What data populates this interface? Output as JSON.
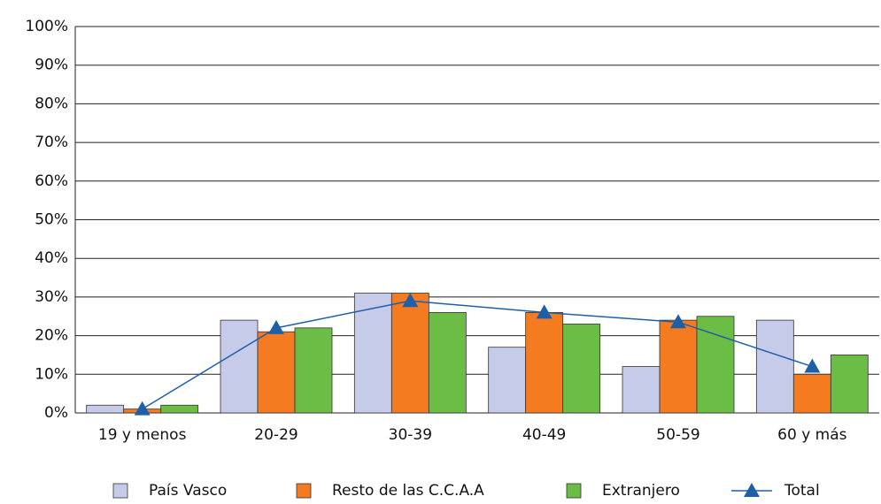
{
  "chart_data": {
    "type": "bar",
    "categories": [
      "19 y menos",
      "20-29",
      "30-39",
      "40-49",
      "50-59",
      "60 y más"
    ],
    "series": [
      {
        "name": "País Vasco",
        "color": "#c5cbe8",
        "values": [
          2,
          24,
          31,
          17,
          12,
          24
        ]
      },
      {
        "name": "Resto de las C.C.A.A",
        "color": "#f47b20",
        "values": [
          1,
          21,
          31,
          26,
          24,
          10
        ]
      },
      {
        "name": "Extranjero",
        "color": "#6cbd45",
        "values": [
          2,
          22,
          26,
          23,
          25,
          15
        ]
      },
      {
        "name": "Total",
        "color": "#1f5fa8",
        "type": "line",
        "values": [
          1,
          22,
          29,
          26,
          23.5,
          12
        ]
      }
    ],
    "ylim": [
      0,
      100
    ],
    "yticks": [
      {
        "value": 0,
        "label": "0%"
      },
      {
        "value": 10,
        "label": "10%"
      },
      {
        "value": 20,
        "label": "20%"
      },
      {
        "value": 30,
        "label": "30%"
      },
      {
        "value": 40,
        "label": "40%"
      },
      {
        "value": 50,
        "label": "50%"
      },
      {
        "value": 60,
        "label": "60%"
      },
      {
        "value": 70,
        "label": "70%"
      },
      {
        "value": 80,
        "label": "80%"
      },
      {
        "value": 90,
        "label": "90%"
      },
      {
        "value": 100,
        "label": "100%"
      }
    ],
    "grid": true,
    "legend": "bottom"
  }
}
